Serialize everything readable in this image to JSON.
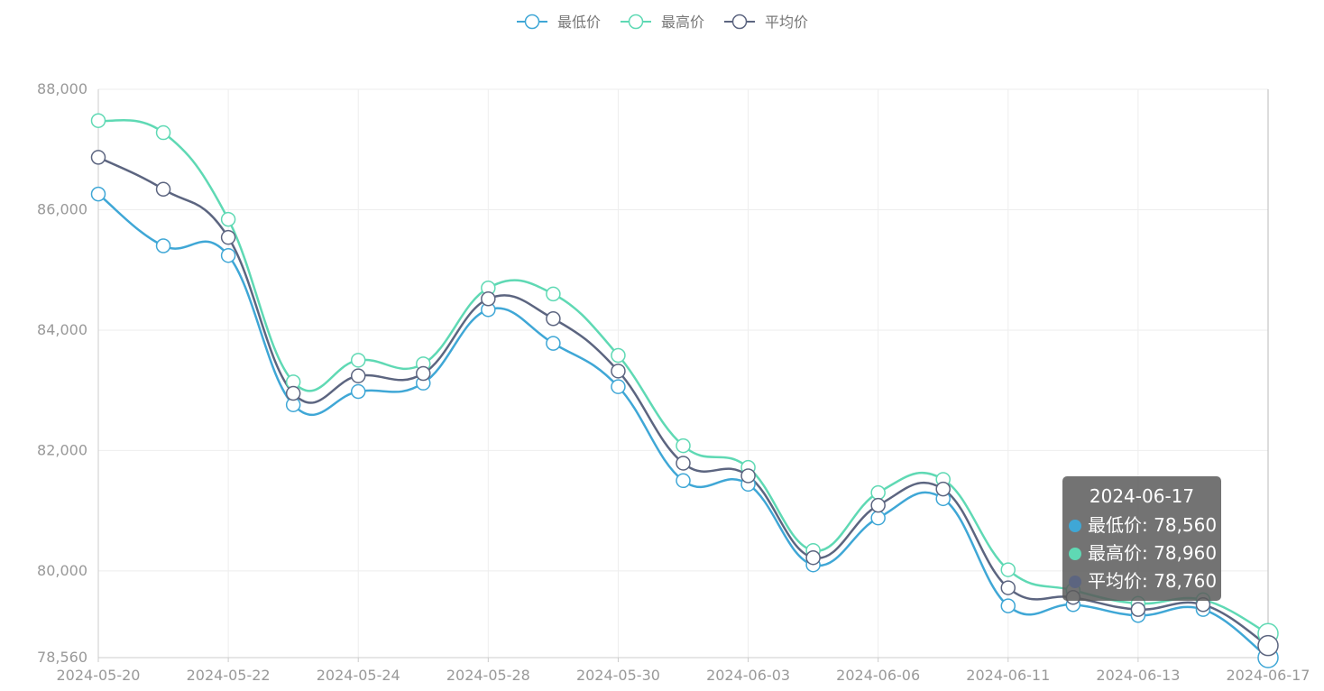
{
  "legend": [
    {
      "label": "最低价",
      "color": "#3fa7d6"
    },
    {
      "label": "最高价",
      "color": "#5fd9b4"
    },
    {
      "label": "平均价",
      "color": "#5c6580"
    }
  ],
  "tooltip": {
    "title": "2024-06-17",
    "rows": [
      {
        "label": "最低价: 78,560",
        "color": "#3fa7d6"
      },
      {
        "label": "最高价: 78,960",
        "color": "#5fd9b4"
      },
      {
        "label": "平均价: 78,760",
        "color": "#5c6580"
      }
    ]
  },
  "chart_data": {
    "type": "line",
    "title": "",
    "xlabel": "",
    "ylabel": "",
    "ylim": [
      78560,
      88000
    ],
    "y_ticks": [
      78560,
      80000,
      82000,
      84000,
      86000,
      88000
    ],
    "y_tick_labels": [
      "78,560",
      "80,000",
      "82,000",
      "84,000",
      "86,000",
      "88,000"
    ],
    "grid": true,
    "legend_position": "top-center",
    "x_tick_labels": [
      "2024-05-20",
      "2024-05-22",
      "2024-05-24",
      "2024-05-28",
      "2024-05-30",
      "2024-06-03",
      "2024-06-06",
      "2024-06-11",
      "2024-06-13",
      "2024-06-17"
    ],
    "x": [
      "2024-05-20",
      "2024-05-21",
      "2024-05-22",
      "2024-05-23",
      "2024-05-24",
      "2024-05-27",
      "2024-05-28",
      "2024-05-29",
      "2024-05-30",
      "2024-05-31",
      "2024-06-03",
      "2024-06-04",
      "2024-06-06",
      "2024-06-07",
      "2024-06-11",
      "2024-06-12",
      "2024-06-13",
      "2024-06-14",
      "2024-06-17"
    ],
    "series": [
      {
        "name": "最低价",
        "color": "#3fa7d6",
        "values": [
          86260,
          85400,
          85240,
          82760,
          82980,
          83120,
          84340,
          83780,
          83060,
          81500,
          81440,
          80100,
          80880,
          81200,
          79420,
          79440,
          79260,
          79360,
          78560
        ]
      },
      {
        "name": "最高价",
        "color": "#5fd9b4",
        "values": [
          87480,
          87280,
          85840,
          83140,
          83500,
          83440,
          84700,
          84600,
          83580,
          82080,
          81720,
          80340,
          81300,
          81520,
          80020,
          79680,
          79460,
          79520,
          78960
        ]
      },
      {
        "name": "平均价",
        "color": "#5c6580",
        "values": [
          86870,
          86340,
          85540,
          82950,
          83240,
          83280,
          84520,
          84190,
          83320,
          81790,
          81580,
          80220,
          81090,
          81360,
          79720,
          79560,
          79360,
          79440,
          78760
        ]
      }
    ]
  }
}
